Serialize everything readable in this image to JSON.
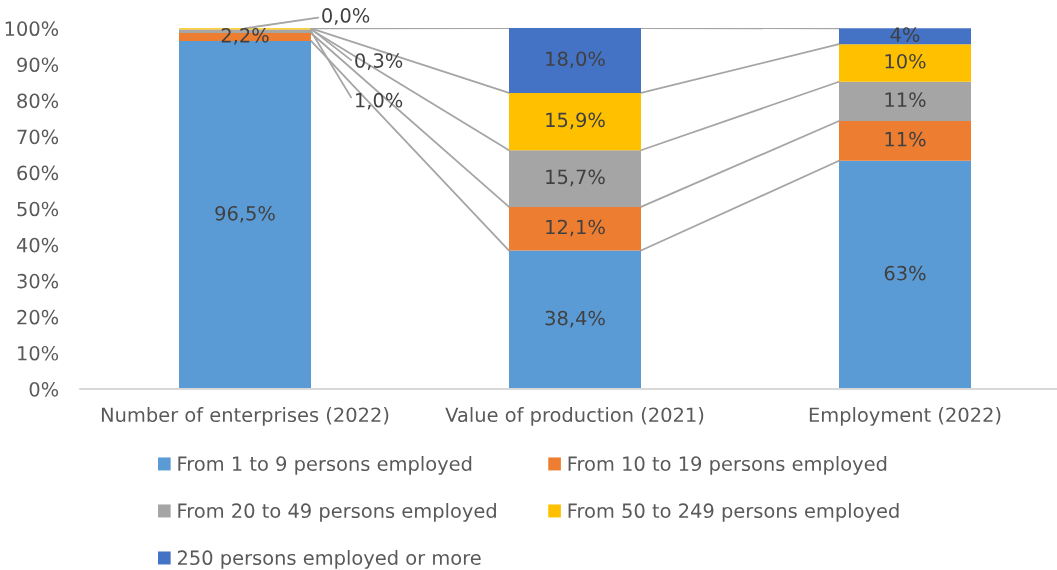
{
  "chart_data": {
    "type": "bar",
    "stacked": true,
    "categories": [
      "Number of enterprises (2022)",
      "Value of production (2021)",
      "Employment (2022)"
    ],
    "series": [
      {
        "name": "From 1 to 9 persons employed",
        "color": "#5b9bd5",
        "values": [
          96.5,
          38.4,
          63.3
        ],
        "value_labels": [
          "96,5%",
          "38,4%",
          "63%"
        ]
      },
      {
        "name": "From 10 to 19 persons employed",
        "color": "#ed7d31",
        "values": [
          2.2,
          12.1,
          11.0
        ],
        "value_labels": [
          "2,2%",
          "12,1%",
          "11%"
        ]
      },
      {
        "name": "From 20 to 49 persons employed",
        "color": "#a5a5a5",
        "values": [
          1.0,
          15.7,
          10.9
        ],
        "value_labels": [
          "1,0%",
          "15,7%",
          "11%"
        ]
      },
      {
        "name": "From 50 to 249 persons employed",
        "color": "#ffc000",
        "values": [
          0.3,
          15.9,
          10.4
        ],
        "value_labels": [
          "0,3%",
          "15,9%",
          "10%"
        ]
      },
      {
        "name": "250 persons employed or more",
        "color": "#4472c4",
        "values": [
          0.0,
          18.0,
          4.4
        ],
        "value_labels": [
          "0,0%",
          "18,0%",
          "4%"
        ]
      }
    ],
    "ylim": [
      0,
      100.1
    ],
    "yticks": [
      {
        "value": 0,
        "label": "0%"
      },
      {
        "value": 10,
        "label": "10%"
      },
      {
        "value": 20,
        "label": "20%"
      },
      {
        "value": 30,
        "label": "30%"
      },
      {
        "value": 40,
        "label": "40%"
      },
      {
        "value": 50,
        "label": "50%"
      },
      {
        "value": 60,
        "label": "60%"
      },
      {
        "value": 70,
        "label": "70%"
      },
      {
        "value": 80,
        "label": "80%"
      },
      {
        "value": 90,
        "label": "90%"
      },
      {
        "value": 100,
        "label": "100%"
      }
    ],
    "legend": "bottom",
    "grid": false
  }
}
